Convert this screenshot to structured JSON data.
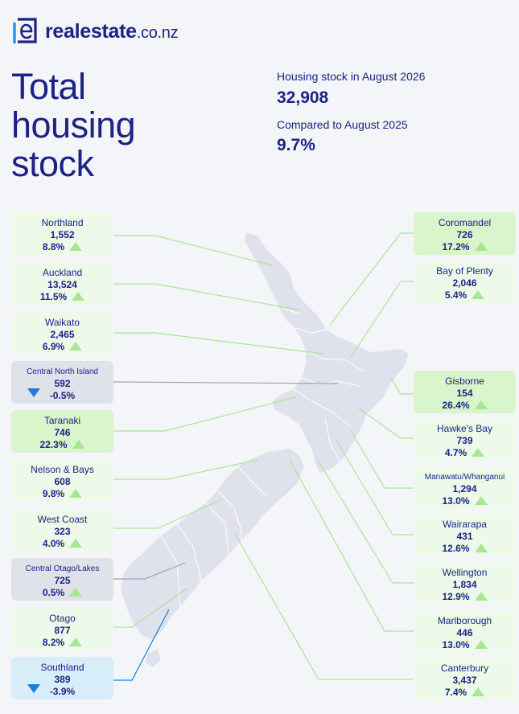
{
  "brand": {
    "name": "realestate",
    "tld": ".co.nz"
  },
  "title": {
    "line1": "Total",
    "line2": "housing",
    "line3": "stock"
  },
  "summary": {
    "stock_label": "Housing stock in August 2026",
    "stock_value": "32,908",
    "compare_label": "Compared to August 2025",
    "compare_value": "9.7%"
  },
  "colors": {
    "navy": "#1c2286",
    "up": "#a8e696",
    "down": "#1a7fd6",
    "map": "#dfe1ec"
  },
  "regions": [
    {
      "name": "Northland",
      "stock": "1,552",
      "change": "8.8%",
      "trend": "up"
    },
    {
      "name": "Auckland",
      "stock": "13,524",
      "change": "11.5%",
      "trend": "up"
    },
    {
      "name": "Waikato",
      "stock": "2,465",
      "change": "6.9%",
      "trend": "up"
    },
    {
      "name": "Central North Island",
      "stock": "592",
      "change": "-0.5%",
      "trend": "down"
    },
    {
      "name": "Taranaki",
      "stock": "746",
      "change": "22.3%",
      "trend": "up"
    },
    {
      "name": "Nelson & Bays",
      "stock": "608",
      "change": "9.8%",
      "trend": "up"
    },
    {
      "name": "West Coast",
      "stock": "323",
      "change": "4.0%",
      "trend": "up"
    },
    {
      "name": "Central Otago/Lakes",
      "stock": "725",
      "change": "0.5%",
      "trend": "up"
    },
    {
      "name": "Otago",
      "stock": "877",
      "change": "8.2%",
      "trend": "up"
    },
    {
      "name": "Southland",
      "stock": "389",
      "change": "-3.9%",
      "trend": "down"
    },
    {
      "name": "Coromandel",
      "stock": "726",
      "change": "17.2%",
      "trend": "up"
    },
    {
      "name": "Bay of Plenty",
      "stock": "2,046",
      "change": "5.4%",
      "trend": "up"
    },
    {
      "name": "Gisborne",
      "stock": "154",
      "change": "26.4%",
      "trend": "up"
    },
    {
      "name": "Hawke's Bay",
      "stock": "739",
      "change": "4.7%",
      "trend": "up"
    },
    {
      "name": "Manawatu/Whanganui",
      "stock": "1,294",
      "change": "13.0%",
      "trend": "up"
    },
    {
      "name": "Wairarapa",
      "stock": "431",
      "change": "12.6%",
      "trend": "up"
    },
    {
      "name": "Wellington",
      "stock": "1,834",
      "change": "12.9%",
      "trend": "up"
    },
    {
      "name": "Marlborough",
      "stock": "446",
      "change": "13.0%",
      "trend": "up"
    },
    {
      "name": "Canterbury",
      "stock": "3,437",
      "change": "7.4%",
      "trend": "up"
    }
  ]
}
